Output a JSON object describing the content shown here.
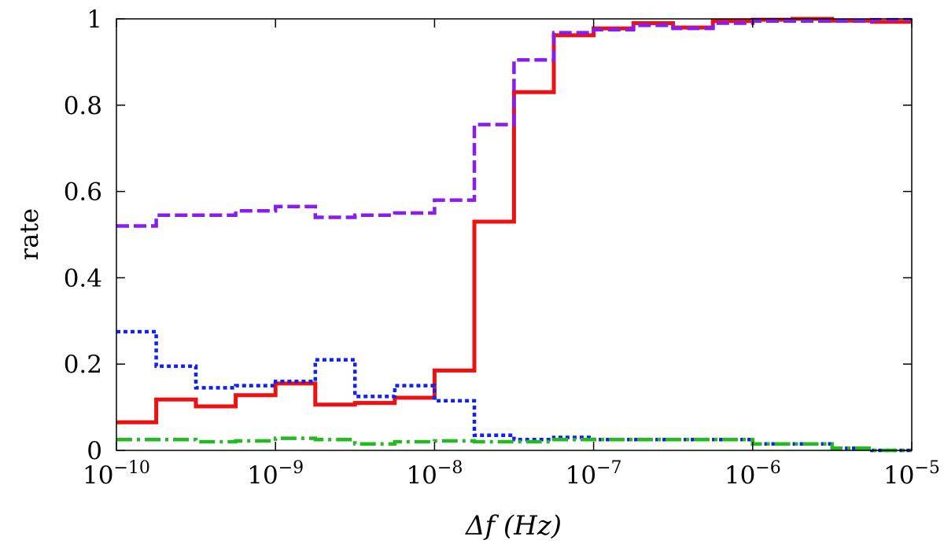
{
  "chart_data": {
    "type": "line",
    "title": "",
    "xlabel": "Δf (Hz)",
    "ylabel": "rate",
    "xscale": "log",
    "xlim": [
      1e-10,
      1e-05
    ],
    "ylim": [
      0,
      1
    ],
    "grid": false,
    "x_ticks": [
      {
        "value": 1e-10,
        "base": "10",
        "exp": "−10"
      },
      {
        "value": 1e-09,
        "base": "10",
        "exp": "−9"
      },
      {
        "value": 1e-08,
        "base": "10",
        "exp": "−8"
      },
      {
        "value": 1e-07,
        "base": "10",
        "exp": "−7"
      },
      {
        "value": 1e-06,
        "base": "10",
        "exp": "−6"
      },
      {
        "value": 1e-05,
        "base": "10",
        "exp": "−5"
      }
    ],
    "y_ticks": [
      {
        "value": 0,
        "label": "0"
      },
      {
        "value": 0.2,
        "label": "0.2"
      },
      {
        "value": 0.4,
        "label": "0.4"
      },
      {
        "value": 0.6,
        "label": "0.6"
      },
      {
        "value": 0.8,
        "label": "0.8"
      },
      {
        "value": 1,
        "label": "1"
      }
    ],
    "bin_edges": [
      1e-10,
      1.78e-10,
      3.16e-10,
      5.62e-10,
      1e-09,
      1.78e-09,
      3.16e-09,
      5.62e-09,
      1e-08,
      1.78e-08,
      3.16e-08,
      5.62e-08,
      1e-07,
      1.78e-07,
      3.16e-07,
      5.62e-07,
      1e-06,
      1.78e-06,
      3.16e-06,
      5.62e-06,
      1e-05
    ],
    "series": [
      {
        "color": "#ee1111",
        "style": "solid",
        "values": [
          0.065,
          0.118,
          0.102,
          0.128,
          0.155,
          0.106,
          0.11,
          0.122,
          0.185,
          0.53,
          0.83,
          0.962,
          0.978,
          0.99,
          0.98,
          0.995,
          0.998,
          1.0,
          0.996,
          0.993
        ]
      },
      {
        "color": "#8a1cf0",
        "style": "dashed",
        "values": [
          0.52,
          0.545,
          0.545,
          0.555,
          0.565,
          0.54,
          0.545,
          0.55,
          0.58,
          0.755,
          0.905,
          0.968,
          0.975,
          0.985,
          0.978,
          0.99,
          0.995,
          0.995,
          0.995,
          0.998
        ]
      },
      {
        "color": "#1122ee",
        "style": "dotted",
        "values": [
          0.275,
          0.195,
          0.145,
          0.15,
          0.16,
          0.21,
          0.125,
          0.15,
          0.115,
          0.035,
          0.025,
          0.03,
          0.025,
          0.025,
          0.025,
          0.025,
          0.015,
          0.015,
          0.005,
          0.0
        ]
      },
      {
        "color": "#22bb22",
        "style": "dashdot",
        "values": [
          0.025,
          0.025,
          0.02,
          0.022,
          0.028,
          0.025,
          0.015,
          0.02,
          0.022,
          0.02,
          0.02,
          0.025,
          0.025,
          0.025,
          0.025,
          0.025,
          0.015,
          0.015,
          0.005,
          0.0
        ]
      }
    ]
  }
}
